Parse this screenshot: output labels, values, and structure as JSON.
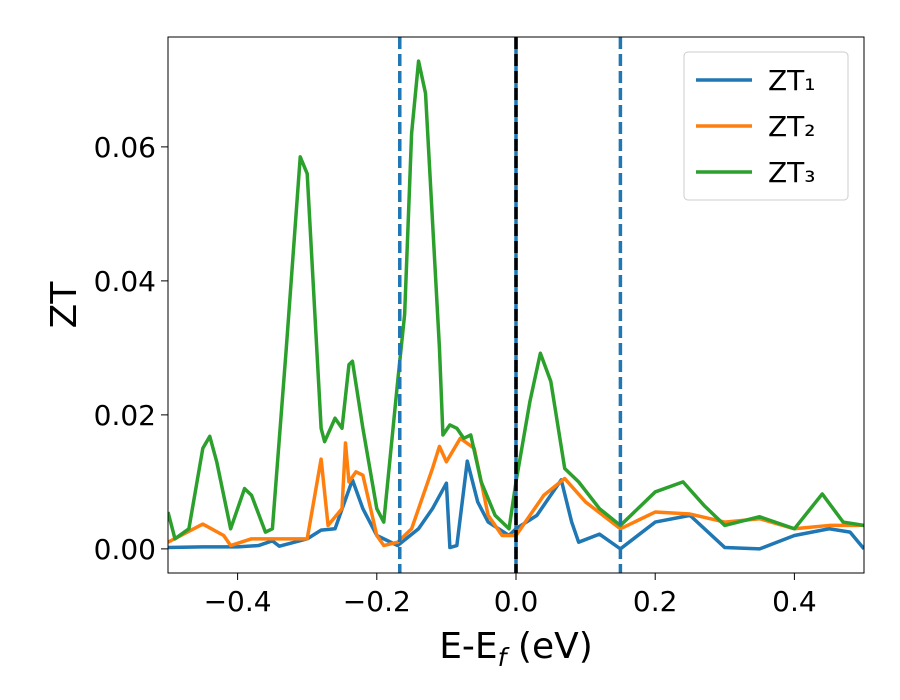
{
  "chart_data": {
    "type": "line",
    "xlabel": [
      "E-E",
      "f",
      " (eV)"
    ],
    "ylabel": "ZT",
    "xlim": [
      -0.5,
      0.5
    ],
    "ylim": [
      -0.0036,
      0.0764
    ],
    "xticks": [
      {
        "value": -0.4,
        "label": "−0.4"
      },
      {
        "value": -0.2,
        "label": "−0.2"
      },
      {
        "value": 0,
        "label": "0.0"
      },
      {
        "value": 0.2,
        "label": "0.2"
      },
      {
        "value": 0.4,
        "label": "0.4"
      }
    ],
    "yticks": [
      {
        "value": 0,
        "label": "0.00"
      },
      {
        "value": 0.02,
        "label": "0.02"
      },
      {
        "value": 0.04,
        "label": "0.04"
      },
      {
        "value": 0.06,
        "label": "0.06"
      }
    ],
    "legend": "upper right",
    "vlines": [
      {
        "x": 0,
        "color": "#1f77b4",
        "style": "solid"
      },
      {
        "x": 0,
        "color": "#000000",
        "style": "dashed"
      },
      {
        "x": -0.167,
        "color": "#1f77b4",
        "style": "dashed"
      },
      {
        "x": 0.15,
        "color": "#1f77b4",
        "style": "dashed"
      }
    ],
    "series": [
      {
        "name": "ZT₁",
        "color": "#1f77b4",
        "x": [
          -0.5,
          -0.45,
          -0.4,
          -0.37,
          -0.35,
          -0.34,
          -0.3,
          -0.28,
          -0.26,
          -0.235,
          -0.22,
          -0.2,
          -0.17,
          -0.14,
          -0.12,
          -0.1,
          -0.095,
          -0.085,
          -0.07,
          -0.055,
          -0.04,
          -0.01,
          0,
          0.03,
          0.065,
          0.08,
          0.09,
          0.12,
          0.15,
          0.2,
          0.25,
          0.3,
          0.35,
          0.4,
          0.45,
          0.48,
          0.5
        ],
        "values": [
          0.0002,
          0.0003,
          0.0003,
          0.0005,
          0.0012,
          0.0004,
          0.0015,
          0.0028,
          0.003,
          0.0103,
          0.006,
          0.002,
          0.0005,
          0.003,
          0.006,
          0.0098,
          0.0002,
          0.0005,
          0.0131,
          0.007,
          0.004,
          0.002,
          0.003,
          0.005,
          0.0103,
          0.004,
          0.001,
          0.0022,
          0.0,
          0.004,
          0.005,
          0.0002,
          0.0,
          0.002,
          0.003,
          0.0025,
          0.0
        ]
      },
      {
        "name": "ZT₂",
        "color": "#ff7f0e",
        "x": [
          -0.5,
          -0.45,
          -0.42,
          -0.41,
          -0.38,
          -0.3,
          -0.28,
          -0.27,
          -0.25,
          -0.245,
          -0.24,
          -0.23,
          -0.22,
          -0.2,
          -0.19,
          -0.17,
          -0.15,
          -0.12,
          -0.11,
          -0.1,
          -0.08,
          -0.06,
          -0.04,
          -0.02,
          0,
          0.04,
          0.07,
          0.1,
          0.15,
          0.2,
          0.25,
          0.3,
          0.35,
          0.4,
          0.45,
          0.5
        ],
        "values": [
          0.001,
          0.0037,
          0.002,
          0.0005,
          0.0015,
          0.0015,
          0.0134,
          0.0035,
          0.006,
          0.0158,
          0.01,
          0.0115,
          0.011,
          0.002,
          0.0005,
          0.001,
          0.003,
          0.012,
          0.0153,
          0.013,
          0.0165,
          0.015,
          0.005,
          0.002,
          0.002,
          0.008,
          0.0105,
          0.007,
          0.003,
          0.0055,
          0.0052,
          0.004,
          0.0045,
          0.003,
          0.0035,
          0.0035
        ]
      },
      {
        "name": "ZT₃",
        "color": "#2ca02c",
        "x": [
          -0.5,
          -0.49,
          -0.47,
          -0.45,
          -0.44,
          -0.43,
          -0.41,
          -0.39,
          -0.38,
          -0.36,
          -0.35,
          -0.33,
          -0.31,
          -0.3,
          -0.28,
          -0.275,
          -0.26,
          -0.25,
          -0.24,
          -0.235,
          -0.22,
          -0.2,
          -0.19,
          -0.17,
          -0.16,
          -0.15,
          -0.14,
          -0.13,
          -0.11,
          -0.105,
          -0.095,
          -0.085,
          -0.075,
          -0.065,
          -0.05,
          -0.03,
          -0.01,
          0,
          0.02,
          0.035,
          0.05,
          0.07,
          0.09,
          0.12,
          0.15,
          0.2,
          0.24,
          0.27,
          0.3,
          0.35,
          0.4,
          0.44,
          0.47,
          0.5
        ],
        "values": [
          0.0055,
          0.0015,
          0.003,
          0.015,
          0.0168,
          0.013,
          0.003,
          0.009,
          0.008,
          0.0025,
          0.003,
          0.03,
          0.0585,
          0.056,
          0.018,
          0.016,
          0.0195,
          0.018,
          0.0275,
          0.028,
          0.018,
          0.006,
          0.004,
          0.025,
          0.035,
          0.062,
          0.0728,
          0.068,
          0.03,
          0.017,
          0.0185,
          0.018,
          0.0165,
          0.017,
          0.01,
          0.005,
          0.003,
          0.01,
          0.022,
          0.0292,
          0.025,
          0.012,
          0.01,
          0.006,
          0.0035,
          0.0085,
          0.01,
          0.0065,
          0.0035,
          0.0048,
          0.003,
          0.0082,
          0.004,
          0.0035
        ]
      }
    ]
  }
}
